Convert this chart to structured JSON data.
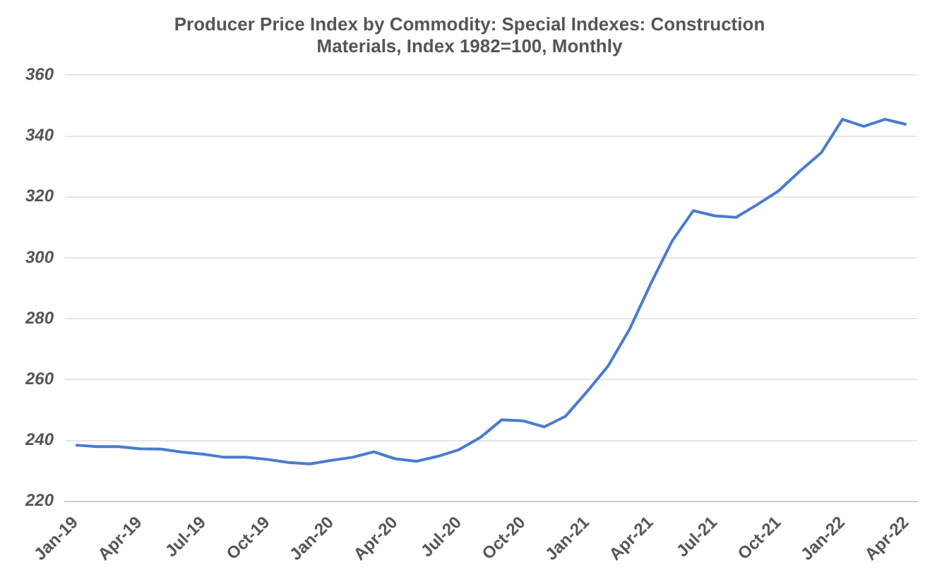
{
  "chart_data": {
    "type": "line",
    "title": [
      "Producer Price Index by Commodity: Special Indexes: Construction",
      "Materials, Index 1982=100, Monthly"
    ],
    "categories": [
      "Jan-19",
      null,
      null,
      "Apr-19",
      null,
      null,
      "Jul-19",
      null,
      null,
      "Oct-19",
      null,
      null,
      "Jan-20",
      null,
      null,
      "Apr-20",
      null,
      null,
      "Jul-20",
      null,
      null,
      "Oct-20",
      null,
      null,
      "Jan-21",
      null,
      null,
      "Apr-21",
      null,
      null,
      "Jul-21",
      null,
      null,
      "Oct-21",
      null,
      null,
      "Jan-22",
      null,
      null,
      "Apr-22"
    ],
    "series": [
      {
        "color": "#4a7bd0",
        "values": [
          238.5,
          238,
          238,
          237.3,
          237.2,
          236.2,
          235.5,
          234.5,
          234.5,
          233.8,
          232.8,
          232.3,
          233.5,
          234.5,
          236.3,
          234,
          233.2,
          234.8,
          237,
          241,
          246.8,
          246.5,
          244.5,
          248,
          256,
          264.5,
          276.5,
          291.5,
          305.5,
          315.5,
          313.8,
          313.3,
          317.5,
          322,
          328.5,
          334.5,
          345.5,
          343.2,
          345.5,
          343.8
        ]
      }
    ],
    "ylim": [
      220,
      360
    ],
    "yticks": [
      220,
      240,
      260,
      280,
      300,
      320,
      340,
      360
    ],
    "grid": "y",
    "legend": false,
    "marker": "none",
    "line_style": "solid"
  }
}
